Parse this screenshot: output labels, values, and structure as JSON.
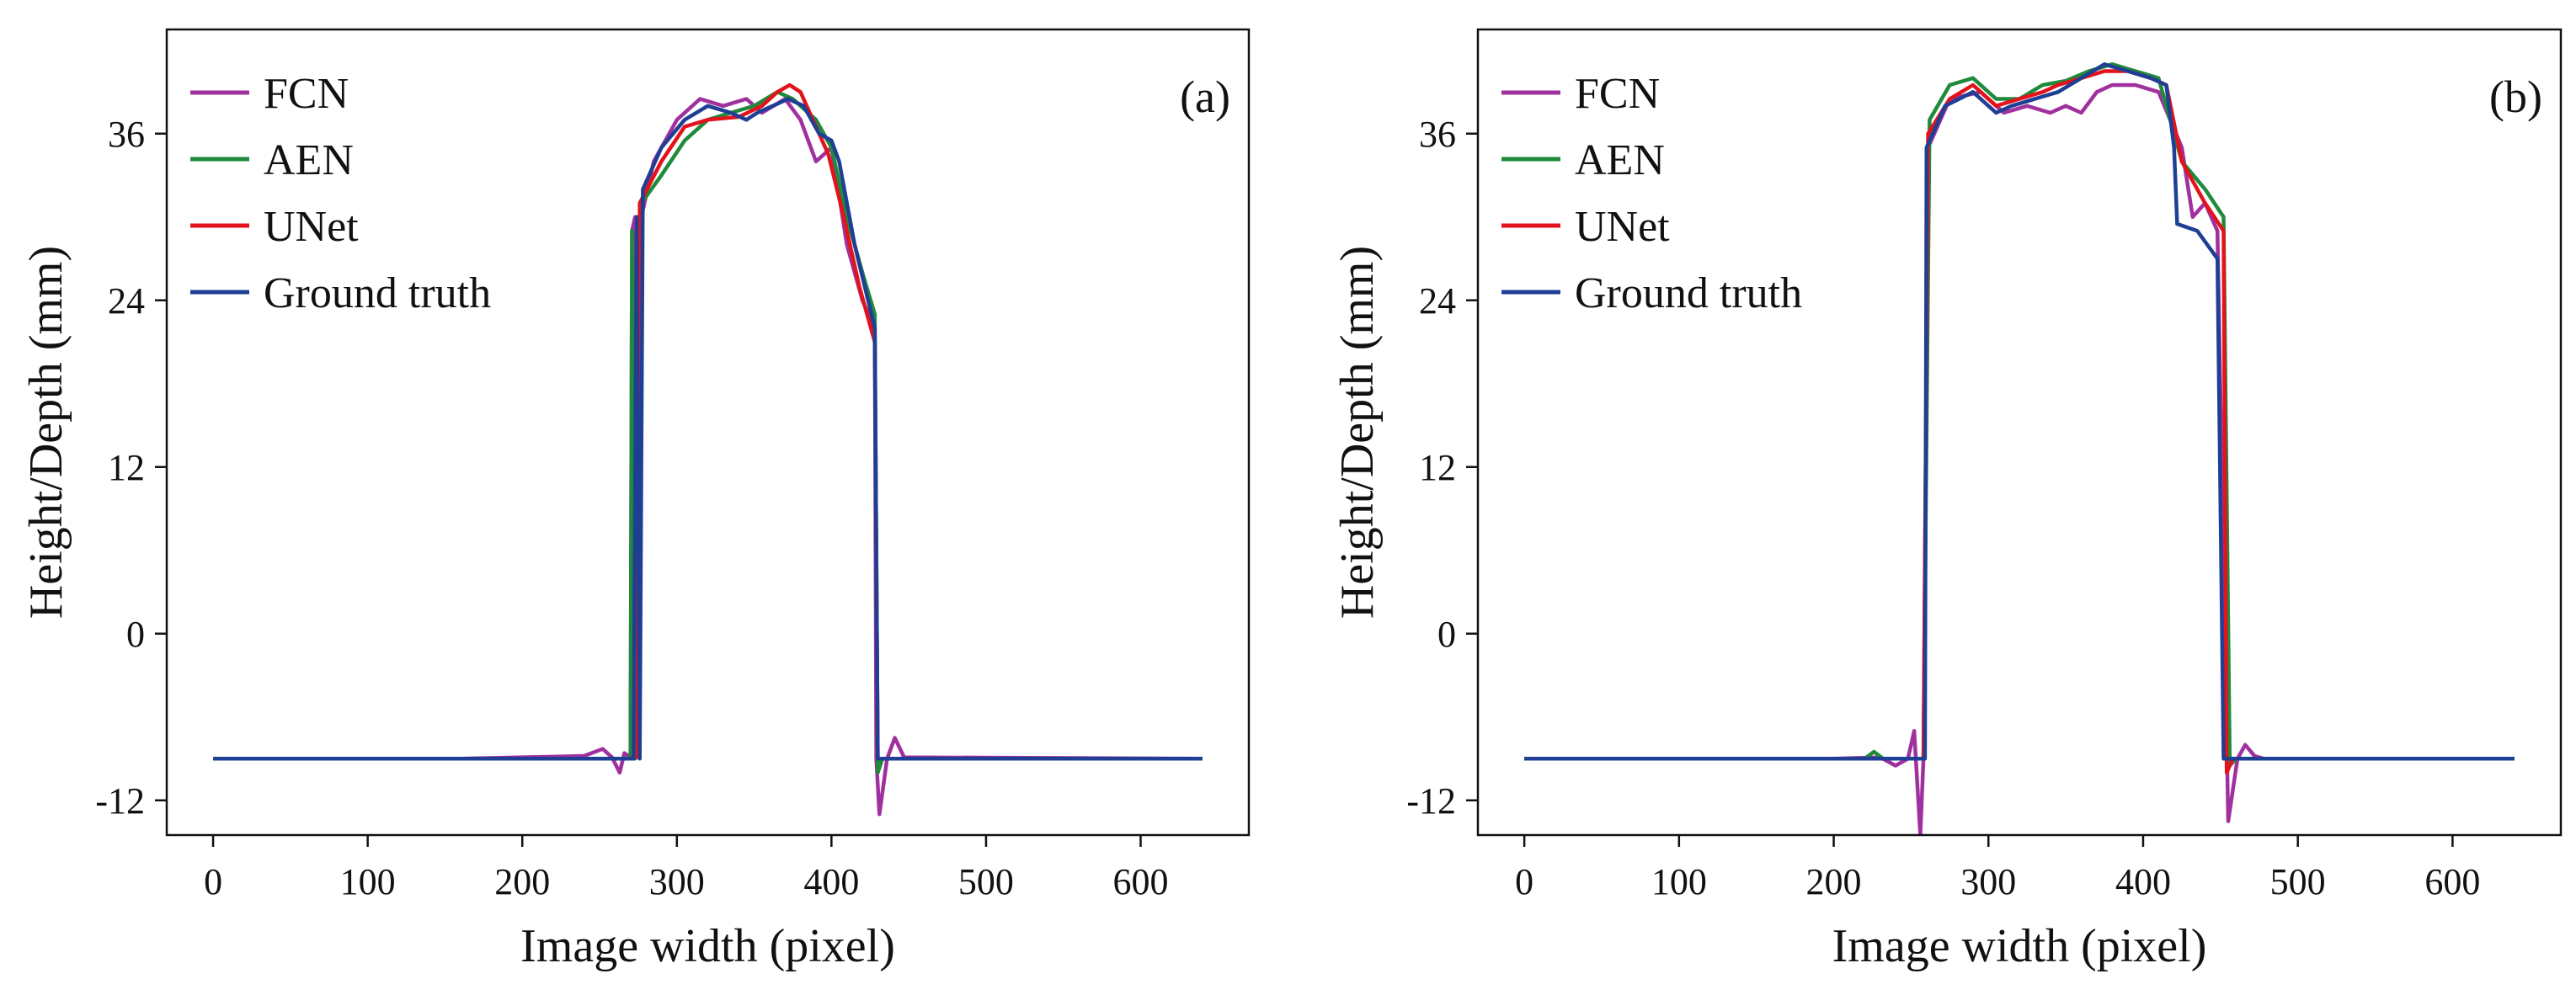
{
  "chart_data": [
    {
      "type": "line",
      "panel_label": "(a)",
      "xlabel": "Image width (pixel)",
      "ylabel": "Height/Depth (mm)",
      "xlim": [
        -30,
        670
      ],
      "ylim": [
        -14.5,
        43.5
      ],
      "xticks": [
        0,
        100,
        200,
        300,
        400,
        500,
        600
      ],
      "yticks": [
        -12,
        0,
        12,
        24,
        36
      ],
      "ytick_labels": [
        "-12",
        "0",
        "12",
        "24",
        "36"
      ],
      "legend_position": "top-left",
      "series": [
        {
          "name": "FCN",
          "color": "#a0309e",
          "points": [
            [
              0,
              -9
            ],
            [
              160,
              -9
            ],
            [
              240,
              -8.8
            ],
            [
              252,
              -8.3
            ],
            [
              258,
              -8.9
            ],
            [
              263,
              -10
            ],
            [
              266,
              -8.6
            ],
            [
              270,
              -8.9
            ],
            [
              271,
              29
            ],
            [
              273,
              30
            ],
            [
              274,
              -8.9
            ],
            [
              277,
              30
            ],
            [
              285,
              34
            ],
            [
              300,
              37
            ],
            [
              315,
              38.5
            ],
            [
              330,
              38
            ],
            [
              345,
              38.5
            ],
            [
              355,
              37.5
            ],
            [
              370,
              38.5
            ],
            [
              380,
              37
            ],
            [
              390,
              34
            ],
            [
              400,
              35
            ],
            [
              410,
              28
            ],
            [
              420,
              24
            ],
            [
              428,
              22
            ],
            [
              429,
              -9
            ],
            [
              431,
              -13
            ],
            [
              436,
              -9
            ],
            [
              441,
              -7.5
            ],
            [
              447,
              -8.9
            ],
            [
              640,
              -9
            ]
          ]
        },
        {
          "name": "AEN",
          "color": "#1f8a3b",
          "points": [
            [
              0,
              -9
            ],
            [
              270,
              -9
            ],
            [
              271,
              29
            ],
            [
              273,
              -9
            ],
            [
              277,
              31
            ],
            [
              290,
              33
            ],
            [
              305,
              35.5
            ],
            [
              320,
              37
            ],
            [
              335,
              37.5
            ],
            [
              350,
              38
            ],
            [
              365,
              39
            ],
            [
              375,
              38.5
            ],
            [
              390,
              37
            ],
            [
              400,
              35
            ],
            [
              410,
              30
            ],
            [
              420,
              26
            ],
            [
              428,
              23
            ],
            [
              430,
              -10
            ],
            [
              433,
              -9
            ],
            [
              640,
              -9
            ]
          ]
        },
        {
          "name": "UNet",
          "color": "#e3121b",
          "points": [
            [
              0,
              -9
            ],
            [
              270,
              -9
            ],
            [
              274,
              -8.9
            ],
            [
              276,
              31
            ],
            [
              290,
              34
            ],
            [
              305,
              36.5
            ],
            [
              320,
              37
            ],
            [
              340,
              37.2
            ],
            [
              355,
              38
            ],
            [
              365,
              39
            ],
            [
              373,
              39.5
            ],
            [
              380,
              39
            ],
            [
              388,
              37
            ],
            [
              398,
              34.5
            ],
            [
              408,
              30
            ],
            [
              418,
              25
            ],
            [
              428,
              21
            ],
            [
              430,
              -9
            ],
            [
              640,
              -9
            ]
          ]
        },
        {
          "name": "Ground truth",
          "color": "#1e3f94",
          "points": [
            [
              0,
              -9
            ],
            [
              272,
              -9
            ],
            [
              274,
              30
            ],
            [
              276,
              -9
            ],
            [
              278,
              32
            ],
            [
              290,
              35
            ],
            [
              305,
              37
            ],
            [
              320,
              38
            ],
            [
              335,
              37.5
            ],
            [
              345,
              37
            ],
            [
              352,
              37.5
            ],
            [
              362,
              38
            ],
            [
              372,
              38.5
            ],
            [
              382,
              38
            ],
            [
              392,
              36
            ],
            [
              400,
              35.5
            ],
            [
              405,
              34
            ],
            [
              415,
              28
            ],
            [
              428,
              22
            ],
            [
              430,
              -9
            ],
            [
              640,
              -9
            ]
          ]
        }
      ]
    },
    {
      "type": "line",
      "panel_label": "(b)",
      "xlabel": "Image width (pixel)",
      "ylabel": "Height/Depth (mm)",
      "xlim": [
        -30,
        670
      ],
      "ylim": [
        -14.5,
        43.5
      ],
      "xticks": [
        0,
        100,
        200,
        300,
        400,
        500,
        600
      ],
      "yticks": [
        -12,
        0,
        12,
        24,
        36
      ],
      "ytick_labels": [
        "-12",
        "0",
        "12",
        "24",
        "36"
      ],
      "legend_position": "top-left",
      "series": [
        {
          "name": "FCN",
          "color": "#a0309e",
          "points": [
            [
              0,
              -9
            ],
            [
              130,
              -9
            ],
            [
              200,
              -9
            ],
            [
              230,
              -8.9
            ],
            [
              240,
              -9.5
            ],
            [
              248,
              -9
            ],
            [
              252,
              -7
            ],
            [
              256,
              -14.5
            ],
            [
              258,
              -9
            ],
            [
              261,
              35
            ],
            [
              275,
              38.5
            ],
            [
              295,
              39
            ],
            [
              310,
              37.5
            ],
            [
              325,
              38
            ],
            [
              340,
              37.5
            ],
            [
              350,
              38
            ],
            [
              360,
              37.5
            ],
            [
              370,
              39
            ],
            [
              380,
              39.5
            ],
            [
              395,
              39.5
            ],
            [
              410,
              39
            ],
            [
              425,
              35
            ],
            [
              432,
              30
            ],
            [
              440,
              31
            ],
            [
              448,
              29
            ],
            [
              455,
              -13.5
            ],
            [
              461,
              -9
            ],
            [
              466,
              -8
            ],
            [
              472,
              -8.8
            ],
            [
              478,
              -9
            ],
            [
              640,
              -9
            ]
          ]
        },
        {
          "name": "AEN",
          "color": "#1f8a3b",
          "points": [
            [
              0,
              -9
            ],
            [
              220,
              -9
            ],
            [
              226,
              -8.5
            ],
            [
              232,
              -9
            ],
            [
              258,
              -9
            ],
            [
              262,
              37
            ],
            [
              275,
              39.5
            ],
            [
              290,
              40
            ],
            [
              305,
              38.5
            ],
            [
              320,
              38.5
            ],
            [
              335,
              39.5
            ],
            [
              350,
              39.8
            ],
            [
              365,
              40.5
            ],
            [
              380,
              41
            ],
            [
              395,
              40.5
            ],
            [
              410,
              40
            ],
            [
              425,
              34
            ],
            [
              440,
              32
            ],
            [
              452,
              30
            ],
            [
              456,
              -9.5
            ],
            [
              460,
              -9
            ],
            [
              640,
              -9
            ]
          ]
        },
        {
          "name": "UNet",
          "color": "#e3121b",
          "points": [
            [
              0,
              -9
            ],
            [
              258,
              -9
            ],
            [
              261,
              36
            ],
            [
              275,
              38.5
            ],
            [
              290,
              39.5
            ],
            [
              305,
              38
            ],
            [
              320,
              38.5
            ],
            [
              335,
              39
            ],
            [
              345,
              39.5
            ],
            [
              360,
              40
            ],
            [
              375,
              40.5
            ],
            [
              390,
              40.5
            ],
            [
              405,
              40
            ],
            [
              415,
              39.5
            ],
            [
              425,
              34
            ],
            [
              440,
              31
            ],
            [
              452,
              29
            ],
            [
              454,
              -10
            ],
            [
              458,
              -9
            ],
            [
              640,
              -9
            ]
          ]
        },
        {
          "name": "Ground truth",
          "color": "#1e3f94",
          "points": [
            [
              0,
              -9
            ],
            [
              256,
              -9
            ],
            [
              259,
              -9
            ],
            [
              260,
              35
            ],
            [
              272,
              38
            ],
            [
              290,
              39
            ],
            [
              305,
              37.5
            ],
            [
              315,
              38
            ],
            [
              330,
              38.5
            ],
            [
              345,
              39
            ],
            [
              360,
              40
            ],
            [
              375,
              41
            ],
            [
              390,
              40.5
            ],
            [
              405,
              40
            ],
            [
              415,
              39.5
            ],
            [
              420,
              35
            ],
            [
              422,
              29.5
            ],
            [
              435,
              29
            ],
            [
              448,
              27
            ],
            [
              452,
              -9
            ],
            [
              640,
              -9
            ]
          ]
        }
      ]
    }
  ]
}
